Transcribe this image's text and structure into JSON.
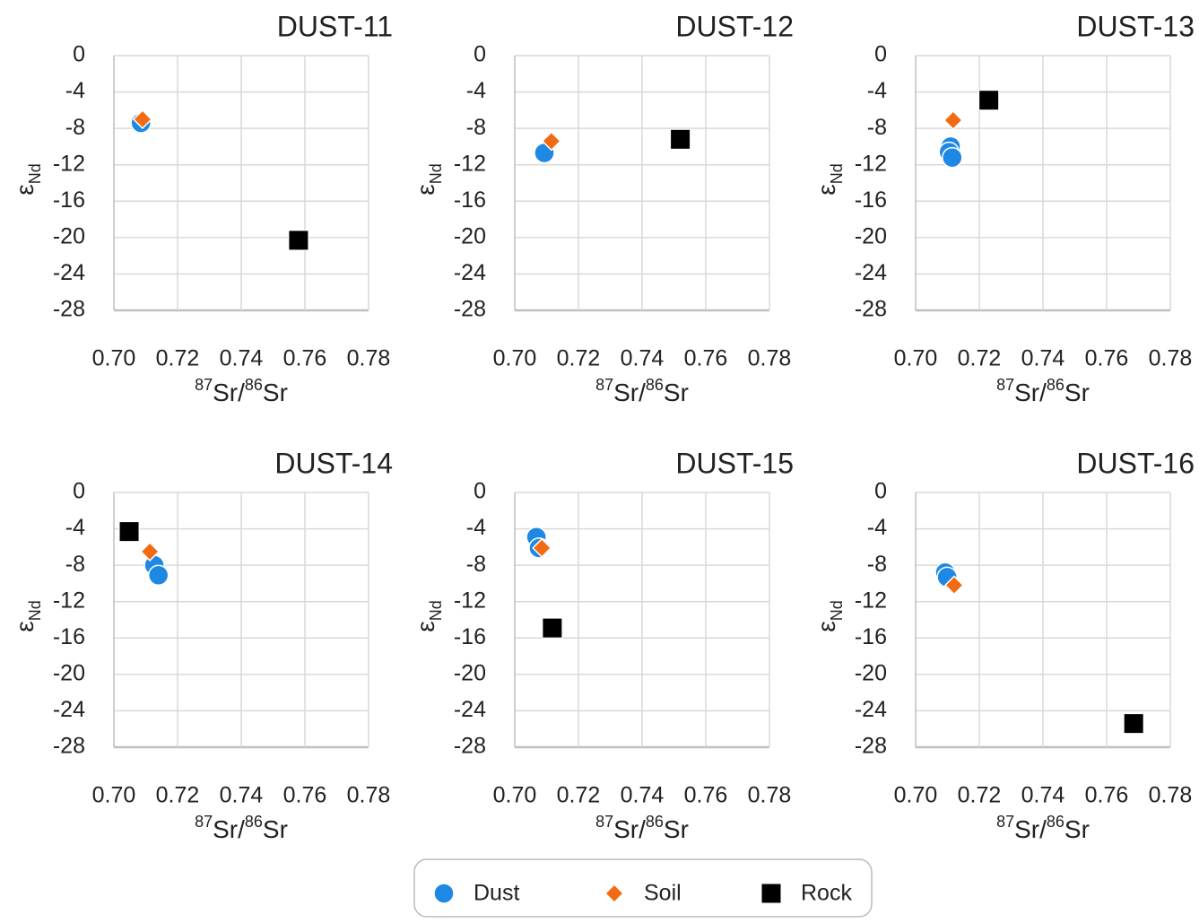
{
  "chart_data": [
    {
      "type": "scatter",
      "title": "DUST-11",
      "xlabel": [
        {
          "text": "87",
          "sup": true
        },
        {
          "text": "Sr/"
        },
        {
          "text": "86",
          "sup": true
        },
        {
          "text": "Sr"
        }
      ],
      "ylabel": [
        {
          "text": "ε"
        },
        {
          "text": "Nd",
          "sub": true
        }
      ],
      "xlim": [
        0.7,
        0.78
      ],
      "ylim": [
        -28,
        0
      ],
      "grid": true,
      "xticks": [
        {
          "value": 0.7,
          "label": "0.70"
        },
        {
          "value": 0.72,
          "label": "0.72"
        },
        {
          "value": 0.74,
          "label": "0.74"
        },
        {
          "value": 0.76,
          "label": "0.76"
        },
        {
          "value": 0.78,
          "label": "0.78"
        }
      ],
      "yticks": [
        0,
        -4,
        -8,
        -12,
        -16,
        -20,
        -24,
        -28
      ],
      "series": [
        {
          "name": "Dust",
          "color": "#1e88e5",
          "marker": "circle",
          "x": [
            0.7085
          ],
          "values": [
            -7.4
          ]
        },
        {
          "name": "Soil",
          "color": "#f26b12",
          "marker": "diamond",
          "x": [
            0.709
          ],
          "values": [
            -7.0
          ]
        },
        {
          "name": "Rock",
          "color": "#000000",
          "marker": "square",
          "x": [
            0.758
          ],
          "values": [
            -20.3
          ]
        }
      ]
    },
    {
      "type": "scatter",
      "title": "DUST-12",
      "xlabel": [
        {
          "text": "87",
          "sup": true
        },
        {
          "text": "Sr/"
        },
        {
          "text": "86",
          "sup": true
        },
        {
          "text": "Sr"
        }
      ],
      "ylabel": [
        {
          "text": "ε"
        },
        {
          "text": "Nd",
          "sub": true
        }
      ],
      "xlim": [
        0.7,
        0.78
      ],
      "ylim": [
        -28,
        0
      ],
      "grid": true,
      "xticks": [
        {
          "value": 0.7,
          "label": "0.70"
        },
        {
          "value": 0.72,
          "label": "0.72"
        },
        {
          "value": 0.74,
          "label": "0.74"
        },
        {
          "value": 0.76,
          "label": "0.76"
        },
        {
          "value": 0.78,
          "label": "0.78"
        }
      ],
      "yticks": [
        0,
        -4,
        -8,
        -12,
        -16,
        -20,
        -24,
        -28
      ],
      "series": [
        {
          "name": "Dust",
          "color": "#1e88e5",
          "marker": "circle",
          "x": [
            0.7093
          ],
          "values": [
            -10.7
          ]
        },
        {
          "name": "Soil",
          "color": "#f26b12",
          "marker": "diamond",
          "x": [
            0.7115
          ],
          "values": [
            -9.4
          ]
        },
        {
          "name": "Rock",
          "color": "#000000",
          "marker": "square",
          "x": [
            0.752
          ],
          "values": [
            -9.2
          ]
        }
      ]
    },
    {
      "type": "scatter",
      "title": "DUST-13",
      "xlabel": [
        {
          "text": "87",
          "sup": true
        },
        {
          "text": "Sr/"
        },
        {
          "text": "86",
          "sup": true
        },
        {
          "text": "Sr"
        }
      ],
      "ylabel": [
        {
          "text": "ε"
        },
        {
          "text": "Nd",
          "sub": true
        }
      ],
      "xlim": [
        0.7,
        0.78
      ],
      "ylim": [
        -28,
        0
      ],
      "grid": true,
      "xticks": [
        {
          "value": 0.7,
          "label": "0.70"
        },
        {
          "value": 0.72,
          "label": "0.72"
        },
        {
          "value": 0.74,
          "label": "0.74"
        },
        {
          "value": 0.76,
          "label": "0.76"
        },
        {
          "value": 0.78,
          "label": "0.78"
        }
      ],
      "yticks": [
        0,
        -4,
        -8,
        -12,
        -16,
        -20,
        -24,
        -28
      ],
      "series": [
        {
          "name": "Dust",
          "color": "#1e88e5",
          "marker": "circle",
          "x": [
            0.711,
            0.7105,
            0.7115
          ],
          "values": [
            -10.0,
            -10.6,
            -11.2
          ]
        },
        {
          "name": "Soil",
          "color": "#f26b12",
          "marker": "diamond",
          "x": [
            0.7118
          ],
          "values": [
            -7.1
          ]
        },
        {
          "name": "Rock",
          "color": "#000000",
          "marker": "square",
          "x": [
            0.723
          ],
          "values": [
            -4.9
          ]
        }
      ]
    },
    {
      "type": "scatter",
      "title": "DUST-14",
      "xlabel": [
        {
          "text": "87",
          "sup": true
        },
        {
          "text": "Sr/"
        },
        {
          "text": "86",
          "sup": true
        },
        {
          "text": "Sr"
        }
      ],
      "ylabel": [
        {
          "text": "ε"
        },
        {
          "text": "Nd",
          "sub": true
        }
      ],
      "xlim": [
        0.7,
        0.78
      ],
      "ylim": [
        -28,
        0
      ],
      "grid": true,
      "xticks": [
        {
          "value": 0.7,
          "label": "0.70"
        },
        {
          "value": 0.72,
          "label": "0.72"
        },
        {
          "value": 0.74,
          "label": "0.74"
        },
        {
          "value": 0.76,
          "label": "0.76"
        },
        {
          "value": 0.78,
          "label": "0.78"
        }
      ],
      "yticks": [
        0,
        -4,
        -8,
        -12,
        -16,
        -20,
        -24,
        -28
      ],
      "series": [
        {
          "name": "Dust",
          "color": "#1e88e5",
          "marker": "circle",
          "x": [
            0.7127,
            0.714
          ],
          "values": [
            -8.0,
            -9.1
          ]
        },
        {
          "name": "Soil",
          "color": "#f26b12",
          "marker": "diamond",
          "x": [
            0.7113
          ],
          "values": [
            -6.5
          ]
        },
        {
          "name": "Rock",
          "color": "#000000",
          "marker": "square",
          "x": [
            0.7048
          ],
          "values": [
            -4.3
          ]
        }
      ]
    },
    {
      "type": "scatter",
      "title": "DUST-15",
      "xlabel": [
        {
          "text": "87",
          "sup": true
        },
        {
          "text": "Sr/"
        },
        {
          "text": "86",
          "sup": true
        },
        {
          "text": "Sr"
        }
      ],
      "ylabel": [
        {
          "text": "ε"
        },
        {
          "text": "Nd",
          "sub": true
        }
      ],
      "xlim": [
        0.7,
        0.78
      ],
      "ylim": [
        -28,
        0
      ],
      "grid": true,
      "xticks": [
        {
          "value": 0.7,
          "label": "0.70"
        },
        {
          "value": 0.72,
          "label": "0.72"
        },
        {
          "value": 0.74,
          "label": "0.74"
        },
        {
          "value": 0.76,
          "label": "0.76"
        },
        {
          "value": 0.78,
          "label": "0.78"
        }
      ],
      "yticks": [
        0,
        -4,
        -8,
        -12,
        -16,
        -20,
        -24,
        -28
      ],
      "series": [
        {
          "name": "Dust",
          "color": "#1e88e5",
          "marker": "circle",
          "x": [
            0.7068,
            0.7076
          ],
          "values": [
            -4.9,
            -6.1
          ]
        },
        {
          "name": "Soil",
          "color": "#f26b12",
          "marker": "diamond",
          "x": [
            0.7085
          ],
          "values": [
            -6.1
          ]
        },
        {
          "name": "Rock",
          "color": "#000000",
          "marker": "square",
          "x": [
            0.7118
          ],
          "values": [
            -14.9
          ]
        }
      ]
    },
    {
      "type": "scatter",
      "title": "DUST-16",
      "xlabel": [
        {
          "text": "87",
          "sup": true
        },
        {
          "text": "Sr/"
        },
        {
          "text": "86",
          "sup": true
        },
        {
          "text": "Sr"
        }
      ],
      "ylabel": [
        {
          "text": "ε"
        },
        {
          "text": "Nd",
          "sub": true
        }
      ],
      "xlim": [
        0.7,
        0.78
      ],
      "ylim": [
        -28,
        0
      ],
      "grid": true,
      "xticks": [
        {
          "value": 0.7,
          "label": "0.70"
        },
        {
          "value": 0.72,
          "label": "0.72"
        },
        {
          "value": 0.74,
          "label": "0.74"
        },
        {
          "value": 0.76,
          "label": "0.76"
        },
        {
          "value": 0.78,
          "label": "0.78"
        }
      ],
      "yticks": [
        0,
        -4,
        -8,
        -12,
        -16,
        -20,
        -24,
        -28
      ],
      "series": [
        {
          "name": "Dust",
          "color": "#1e88e5",
          "marker": "circle",
          "x": [
            0.7093,
            0.7099
          ],
          "values": [
            -8.8,
            -9.3
          ]
        },
        {
          "name": "Soil",
          "color": "#f26b12",
          "marker": "diamond",
          "x": [
            0.7121
          ],
          "values": [
            -10.2
          ]
        },
        {
          "name": "Rock",
          "color": "#000000",
          "marker": "square",
          "x": [
            0.7685
          ],
          "values": [
            -25.4
          ]
        }
      ]
    }
  ]
}
